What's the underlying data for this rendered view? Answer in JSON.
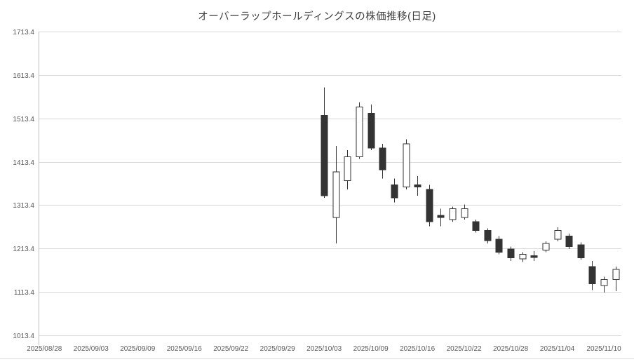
{
  "chart_data": {
    "type": "candlestick",
    "title": "オーバーラップホールディングスの株価推移(日足)",
    "ylim": [
      1013.4,
      1713.4
    ],
    "grid": true,
    "legend": "none",
    "y_ticks": [
      {
        "value": 1013.4,
        "label": "1013.4"
      },
      {
        "value": 1113.4,
        "label": "1113.4"
      },
      {
        "value": 1213.4,
        "label": "1213.4"
      },
      {
        "value": 1313.4,
        "label": "1313.4"
      },
      {
        "value": 1413.4,
        "label": "1413.4"
      },
      {
        "value": 1513.4,
        "label": "1513.4"
      },
      {
        "value": 1613.4,
        "label": "1613.4"
      },
      {
        "value": 1713.4,
        "label": "1713.4"
      }
    ],
    "x_total_slots": 50,
    "first_candle_slot": 24,
    "x_ticks": [
      {
        "slot": 0,
        "label": "2025/08/28"
      },
      {
        "slot": 4,
        "label": "2025/09/03"
      },
      {
        "slot": 8,
        "label": "2025/09/09"
      },
      {
        "slot": 12,
        "label": "2025/09/16"
      },
      {
        "slot": 16,
        "label": "2025/09/22"
      },
      {
        "slot": 20,
        "label": "2025/09/29"
      },
      {
        "slot": 24,
        "label": "2025/10/03"
      },
      {
        "slot": 28,
        "label": "2025/10/09"
      },
      {
        "slot": 32,
        "label": "2025/10/16"
      },
      {
        "slot": 36,
        "label": "2025/10/22"
      },
      {
        "slot": 40,
        "label": "2025/10/28"
      },
      {
        "slot": 44,
        "label": "2025/11/04"
      },
      {
        "slot": 48,
        "label": "2025/11/10"
      }
    ],
    "candles": [
      {
        "date": "2025/10/03",
        "open": 1520,
        "high": 1585,
        "low": 1330,
        "close": 1335
      },
      {
        "date": "2025/10/06",
        "open": 1285,
        "high": 1450,
        "low": 1225,
        "close": 1390
      },
      {
        "date": "2025/10/07",
        "open": 1370,
        "high": 1440,
        "low": 1350,
        "close": 1425
      },
      {
        "date": "2025/10/08",
        "open": 1425,
        "high": 1550,
        "low": 1420,
        "close": 1540
      },
      {
        "date": "2025/10/09",
        "open": 1525,
        "high": 1545,
        "low": 1440,
        "close": 1445
      },
      {
        "date": "2025/10/10",
        "open": 1445,
        "high": 1455,
        "low": 1375,
        "close": 1395
      },
      {
        "date": "2025/10/14",
        "open": 1360,
        "high": 1375,
        "low": 1320,
        "close": 1330
      },
      {
        "date": "2025/10/15",
        "open": 1355,
        "high": 1465,
        "low": 1350,
        "close": 1455
      },
      {
        "date": "2025/10/16",
        "open": 1360,
        "high": 1380,
        "low": 1335,
        "close": 1355
      },
      {
        "date": "2025/10/17",
        "open": 1350,
        "high": 1360,
        "low": 1265,
        "close": 1275
      },
      {
        "date": "2025/10/20",
        "open": 1290,
        "high": 1305,
        "low": 1265,
        "close": 1285
      },
      {
        "date": "2025/10/21",
        "open": 1280,
        "high": 1310,
        "low": 1275,
        "close": 1305
      },
      {
        "date": "2025/10/22",
        "open": 1285,
        "high": 1315,
        "low": 1280,
        "close": 1305
      },
      {
        "date": "2025/10/23",
        "open": 1275,
        "high": 1280,
        "low": 1250,
        "close": 1255
      },
      {
        "date": "2025/10/24",
        "open": 1255,
        "high": 1260,
        "low": 1225,
        "close": 1232
      },
      {
        "date": "2025/10/27",
        "open": 1235,
        "high": 1242,
        "low": 1200,
        "close": 1205
      },
      {
        "date": "2025/10/28",
        "open": 1212,
        "high": 1218,
        "low": 1185,
        "close": 1192
      },
      {
        "date": "2025/10/29",
        "open": 1190,
        "high": 1205,
        "low": 1182,
        "close": 1200
      },
      {
        "date": "2025/10/30",
        "open": 1197,
        "high": 1207,
        "low": 1185,
        "close": 1193
      },
      {
        "date": "2025/10/31",
        "open": 1210,
        "high": 1230,
        "low": 1205,
        "close": 1225
      },
      {
        "date": "2025/11/04",
        "open": 1235,
        "high": 1262,
        "low": 1230,
        "close": 1255
      },
      {
        "date": "2025/11/05",
        "open": 1242,
        "high": 1248,
        "low": 1212,
        "close": 1218
      },
      {
        "date": "2025/11/06",
        "open": 1222,
        "high": 1228,
        "low": 1188,
        "close": 1192
      },
      {
        "date": "2025/11/07",
        "open": 1172,
        "high": 1185,
        "low": 1118,
        "close": 1132
      },
      {
        "date": "2025/11/10",
        "open": 1128,
        "high": 1148,
        "low": 1112,
        "close": 1142
      },
      {
        "date": "2025/11/11",
        "open": 1142,
        "high": 1172,
        "low": 1115,
        "close": 1165
      }
    ],
    "colors": {
      "up_fill": "#ffffff",
      "down_fill": "#333333",
      "stroke": "#333333",
      "wick": "#333333",
      "grid": "#d9d9d9",
      "axis_line": "#bfbfbf",
      "axis_text": "#595959",
      "title_text": "#404040",
      "background": "#ffffff"
    }
  }
}
